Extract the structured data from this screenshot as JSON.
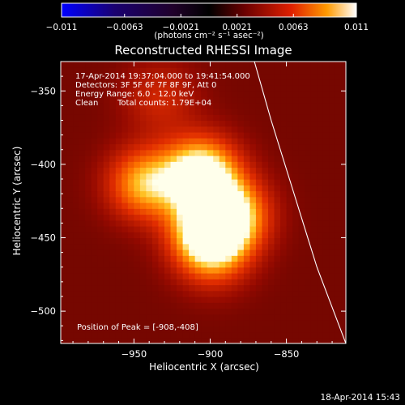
{
  "chart_data": {
    "type": "heatmap",
    "title": "Reconstructed RHESSI Image",
    "xlabel": "Heliocentric X (arcsec)",
    "ylabel": "Heliocentric Y (arcsec)",
    "xlim": [
      -998,
      -811
    ],
    "ylim": [
      -522,
      -330
    ],
    "x_ticks": [
      -950,
      -900,
      -850
    ],
    "y_ticks": [
      -350,
      -400,
      -450,
      -500
    ],
    "colorbar": {
      "label": "(photons cm⁻² s⁻¹ asec⁻²)",
      "min": -0.011,
      "max": 0.011,
      "ticks": [
        -0.011,
        -0.0063,
        -0.0021,
        0.0021,
        0.0063,
        0.011
      ],
      "tick_labels": [
        "−0.011",
        "−0.0063",
        "−0.0021",
        "0.0021",
        "0.0063",
        "0.011"
      ]
    },
    "tick_labels_x": [
      "−950",
      "−900",
      "−850"
    ],
    "tick_labels_y": [
      "−350",
      "−400",
      "−450",
      "−500"
    ],
    "annotations": {
      "time_range": "17-Apr-2014 19:37:04.000 to 19:41:54.000",
      "detectors": "Detectors: 3F 5F 6F 7F 8F 9F, Att 0",
      "energy": "Energy Range: 6.0 - 12.0 keV",
      "method": "Clean",
      "counts": "Total counts: 1.79E+04",
      "peak": "Position of Peak = [-908,-408]"
    },
    "sources": [
      {
        "x": -908,
        "y": -408,
        "intensity": 0.011
      },
      {
        "x": -945,
        "y": -415,
        "intensity": 0.0075
      },
      {
        "x": -888,
        "y": -436,
        "intensity": 0.0085
      },
      {
        "x": -905,
        "y": -446,
        "intensity": 0.0075
      },
      {
        "x": -900,
        "y": -462,
        "intensity": 0.0055
      },
      {
        "x": -935,
        "y": -356,
        "intensity": 0.003
      }
    ],
    "limb_curve": [
      [
        -871,
        -330
      ],
      [
        -860,
        -370
      ],
      [
        -845,
        -420
      ],
      [
        -830,
        -470
      ],
      [
        -811,
        -522
      ]
    ],
    "limb_color": "#ffffff",
    "colormap": "red-temperature"
  },
  "footer": {
    "timestamp": "18-Apr-2014 15:43"
  }
}
